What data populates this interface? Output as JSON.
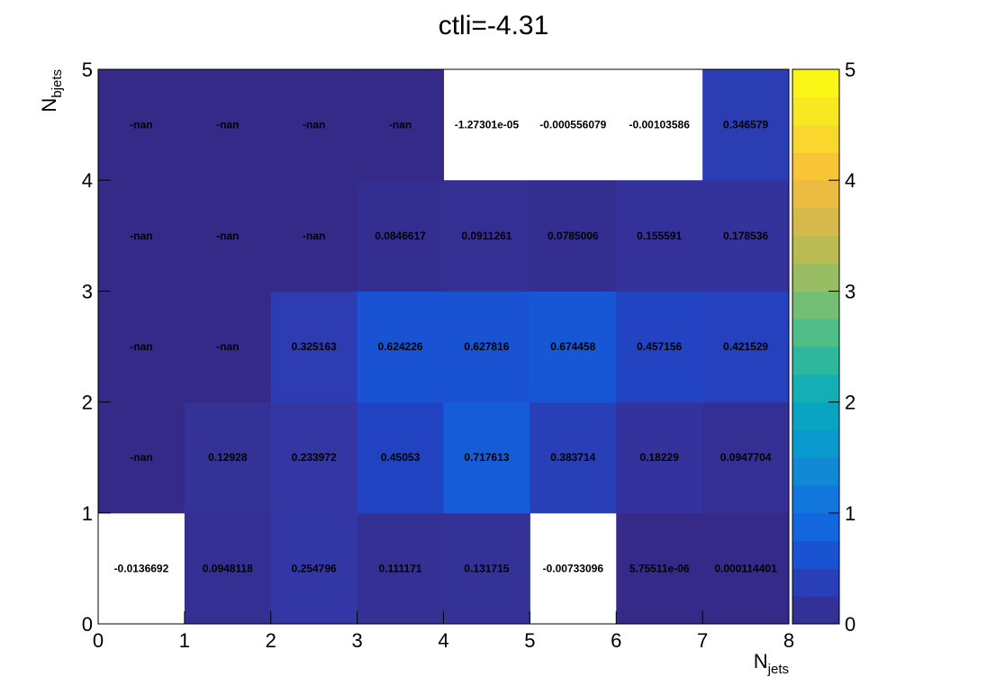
{
  "chart_data": {
    "type": "heatmap",
    "title": "ctli=-4.31",
    "xlabel": {
      "main": "N",
      "sub": "jets"
    },
    "ylabel": {
      "main": "N",
      "sub": "bjets"
    },
    "xlim": [
      0,
      8
    ],
    "ylim": [
      0,
      5
    ],
    "x_ticks": [
      "0",
      "1",
      "2",
      "3",
      "4",
      "5",
      "6",
      "7",
      "8"
    ],
    "y_ticks": [
      "0",
      "1",
      "2",
      "3",
      "4",
      "5"
    ],
    "colorbar": {
      "min": 0,
      "max": 5,
      "ticks": [
        "0",
        "1",
        "2",
        "3",
        "4",
        "5"
      ],
      "palette": "parula"
    },
    "rows": [
      {
        "y": 0,
        "labels": [
          "-0.0136692",
          "0.0948118",
          "0.254796",
          "0.111171",
          "0.131715",
          "-0.00733096",
          "5.75511e-06",
          "0.000114401"
        ],
        "values": [
          -0.0136692,
          0.0948118,
          0.254796,
          0.111171,
          0.131715,
          -0.00733096,
          5.75511e-06,
          0.000114401
        ]
      },
      {
        "y": 1,
        "labels": [
          "-nan",
          "0.12928",
          "0.233972",
          "0.45053",
          "0.717613",
          "0.383714",
          "0.18229",
          "0.0947704"
        ],
        "values": [
          null,
          0.12928,
          0.233972,
          0.45053,
          0.717613,
          0.383714,
          0.18229,
          0.0947704
        ]
      },
      {
        "y": 2,
        "labels": [
          "-nan",
          "-nan",
          "0.325163",
          "0.624226",
          "0.627816",
          "0.674458",
          "0.457156",
          "0.421529"
        ],
        "values": [
          null,
          null,
          0.325163,
          0.624226,
          0.627816,
          0.674458,
          0.457156,
          0.421529
        ]
      },
      {
        "y": 3,
        "labels": [
          "-nan",
          "-nan",
          "-nan",
          "0.0846617",
          "0.0911261",
          "0.0785006",
          "0.155591",
          "0.178536"
        ],
        "values": [
          null,
          null,
          null,
          0.0846617,
          0.0911261,
          0.0785006,
          0.155591,
          0.178536
        ]
      },
      {
        "y": 4,
        "labels": [
          "-nan",
          "-nan",
          "-nan",
          "-nan",
          "-1.27301e-05",
          "-0.000556079",
          "-0.00103586",
          "0.346579"
        ],
        "values": [
          null,
          null,
          null,
          null,
          -1.27301e-05,
          -0.000556079,
          -0.00103586,
          0.346579
        ]
      }
    ]
  }
}
